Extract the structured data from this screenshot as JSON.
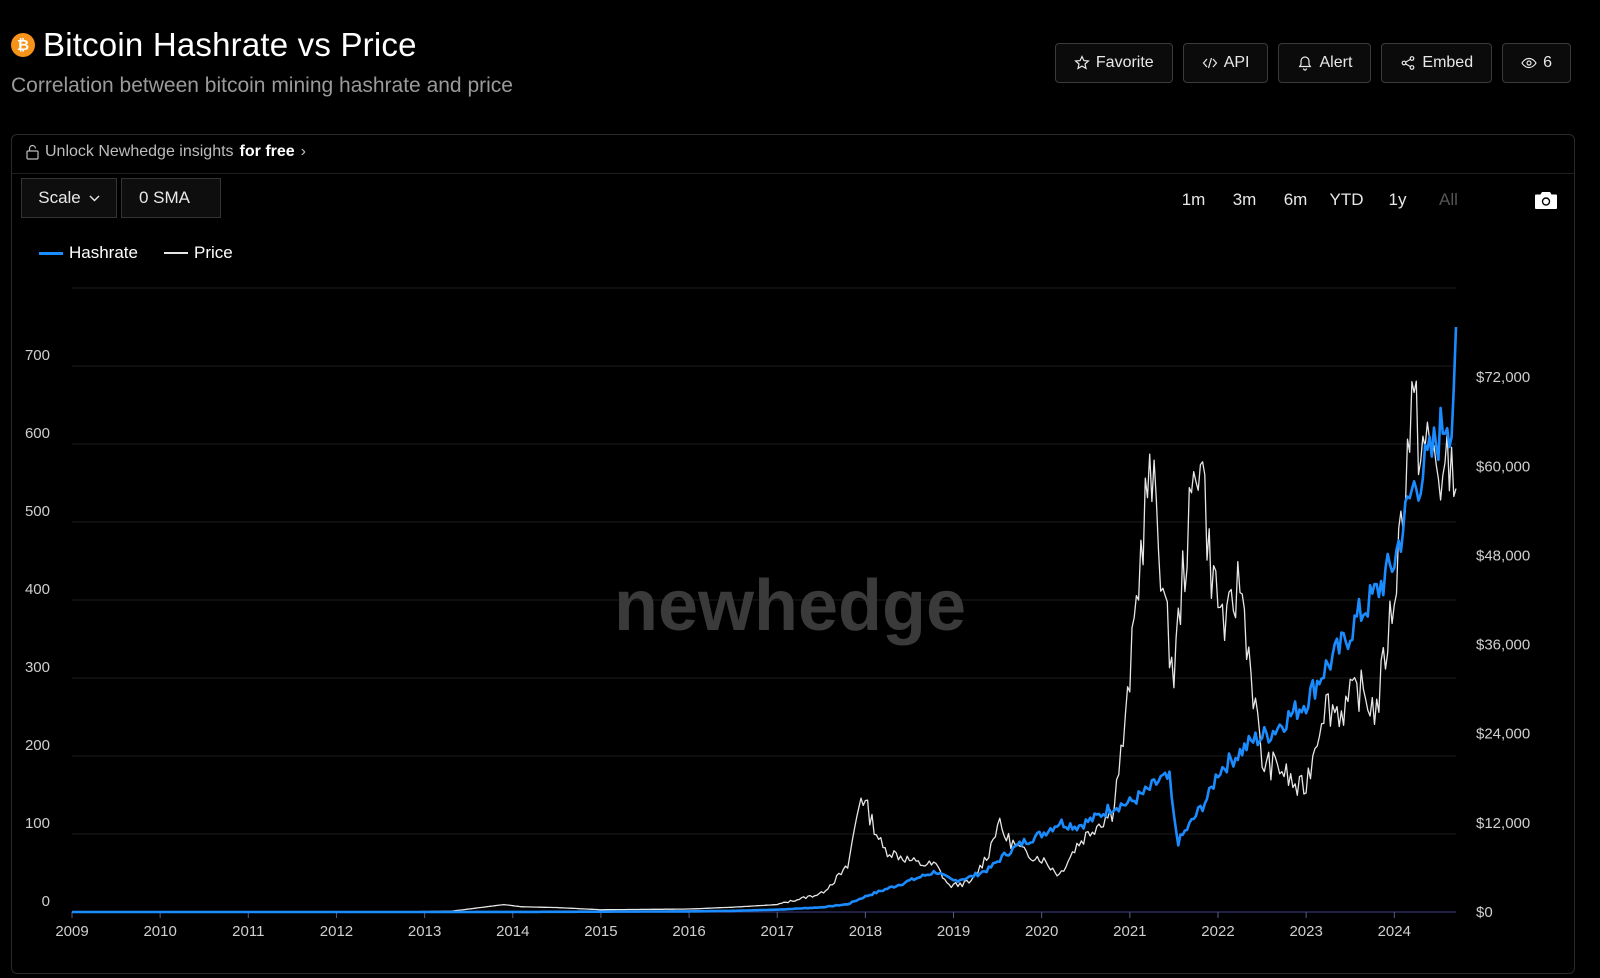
{
  "header": {
    "title": "Bitcoin Hashrate vs Price",
    "subtitle": "Correlation between bitcoin mining hashrate and price",
    "icon": "bitcoin-icon"
  },
  "actions": [
    {
      "label": "Favorite",
      "icon": "star-icon"
    },
    {
      "label": "API",
      "icon": "code-icon"
    },
    {
      "label": "Alert",
      "icon": "bell-icon"
    },
    {
      "label": "Embed",
      "icon": "share-icon"
    },
    {
      "label": "6",
      "icon": "eye-icon"
    }
  ],
  "panel": {
    "unlock_text": "Unlock Newhedge insights",
    "unlock_bold": "for free",
    "scale_label": "Scale",
    "sma_label": "0 SMA",
    "ranges": [
      "1m",
      "3m",
      "6m",
      "YTD",
      "1y",
      "All"
    ],
    "active_range": "All",
    "watermark": "newhedge"
  },
  "colors": {
    "hashrate": "#1a8cff",
    "price": "#e6e6e6",
    "background": "#000000",
    "grid": "#1c1c1c"
  },
  "chart_data": {
    "type": "line",
    "title": "",
    "xlabel": "",
    "ylabel": "",
    "x_ticks": [
      "2009",
      "2010",
      "2011",
      "2012",
      "2013",
      "2014",
      "2015",
      "2016",
      "2017",
      "2018",
      "2019",
      "2020",
      "2021",
      "2022",
      "2023",
      "2024"
    ],
    "y_left_ticks": [
      "0",
      "100",
      "200",
      "300",
      "400",
      "500",
      "600",
      "700"
    ],
    "y_right_ticks": [
      "$0",
      "$12,000",
      "$24,000",
      "$36,000",
      "$48,000",
      "$60,000",
      "$72,000"
    ],
    "ylim_left": [
      0,
      800
    ],
    "ylim_right": [
      0,
      84000
    ],
    "xlim": [
      2009.0,
      2024.7
    ],
    "grid": true,
    "legend": "top-left",
    "series": [
      {
        "name": "Hashrate",
        "axis": "left",
        "points": [
          [
            2009.0,
            0
          ],
          [
            2010.0,
            0
          ],
          [
            2011.0,
            0
          ],
          [
            2012.0,
            0.01
          ],
          [
            2013.0,
            0.02
          ],
          [
            2014.0,
            0.1
          ],
          [
            2015.0,
            0.4
          ],
          [
            2016.0,
            0.8
          ],
          [
            2016.5,
            1.5
          ],
          [
            2017.0,
            3
          ],
          [
            2017.5,
            6
          ],
          [
            2017.8,
            10
          ],
          [
            2018.0,
            20
          ],
          [
            2018.2,
            28
          ],
          [
            2018.5,
            40
          ],
          [
            2018.8,
            52
          ],
          [
            2018.9,
            45
          ],
          [
            2019.0,
            40
          ],
          [
            2019.2,
            45
          ],
          [
            2019.4,
            55
          ],
          [
            2019.6,
            75
          ],
          [
            2019.8,
            90
          ],
          [
            2020.0,
            100
          ],
          [
            2020.2,
            115
          ],
          [
            2020.4,
            110
          ],
          [
            2020.6,
            120
          ],
          [
            2020.8,
            135
          ],
          [
            2021.0,
            140
          ],
          [
            2021.2,
            155
          ],
          [
            2021.35,
            170
          ],
          [
            2021.45,
            170
          ],
          [
            2021.5,
            120
          ],
          [
            2021.55,
            90
          ],
          [
            2021.7,
            115
          ],
          [
            2021.9,
            150
          ],
          [
            2022.0,
            180
          ],
          [
            2022.2,
            200
          ],
          [
            2022.4,
            220
          ],
          [
            2022.6,
            230
          ],
          [
            2022.8,
            250
          ],
          [
            2023.0,
            270
          ],
          [
            2023.2,
            310
          ],
          [
            2023.4,
            340
          ],
          [
            2023.6,
            380
          ],
          [
            2023.8,
            410
          ],
          [
            2024.0,
            450
          ],
          [
            2024.2,
            540
          ],
          [
            2024.4,
            580
          ],
          [
            2024.6,
            640
          ],
          [
            2024.65,
            620
          ],
          [
            2024.7,
            750
          ]
        ]
      },
      {
        "name": "Price",
        "axis": "right",
        "points": [
          [
            2009.0,
            0
          ],
          [
            2010.5,
            0
          ],
          [
            2011.5,
            10
          ],
          [
            2012.5,
            10
          ],
          [
            2013.3,
            100
          ],
          [
            2013.9,
            1000
          ],
          [
            2014.1,
            700
          ],
          [
            2014.5,
            600
          ],
          [
            2015.0,
            300
          ],
          [
            2016.0,
            400
          ],
          [
            2016.5,
            650
          ],
          [
            2017.0,
            1000
          ],
          [
            2017.5,
            2500
          ],
          [
            2017.8,
            6000
          ],
          [
            2017.95,
            16000
          ],
          [
            2018.05,
            13000
          ],
          [
            2018.2,
            8500
          ],
          [
            2018.4,
            7500
          ],
          [
            2018.6,
            6500
          ],
          [
            2018.8,
            6300
          ],
          [
            2018.95,
            3500
          ],
          [
            2019.2,
            4000
          ],
          [
            2019.4,
            8000
          ],
          [
            2019.5,
            12000
          ],
          [
            2019.6,
            10000
          ],
          [
            2019.8,
            8000
          ],
          [
            2020.0,
            7200
          ],
          [
            2020.2,
            5000
          ],
          [
            2020.4,
            9000
          ],
          [
            2020.6,
            11500
          ],
          [
            2020.8,
            13500
          ],
          [
            2020.95,
            25000
          ],
          [
            2021.1,
            45000
          ],
          [
            2021.2,
            58000
          ],
          [
            2021.3,
            55000
          ],
          [
            2021.4,
            40000
          ],
          [
            2021.5,
            32000
          ],
          [
            2021.6,
            45000
          ],
          [
            2021.8,
            64000
          ],
          [
            2021.9,
            48000
          ],
          [
            2022.0,
            42000
          ],
          [
            2022.1,
            38000
          ],
          [
            2022.25,
            45000
          ],
          [
            2022.4,
            30000
          ],
          [
            2022.5,
            20000
          ],
          [
            2022.7,
            19500
          ],
          [
            2022.9,
            16500
          ],
          [
            2023.0,
            17000
          ],
          [
            2023.2,
            28000
          ],
          [
            2023.4,
            27000
          ],
          [
            2023.6,
            30000
          ],
          [
            2023.8,
            27000
          ],
          [
            2023.9,
            35000
          ],
          [
            2024.0,
            43000
          ],
          [
            2024.2,
            68000
          ],
          [
            2024.3,
            63000
          ],
          [
            2024.45,
            61000
          ],
          [
            2024.55,
            58000
          ],
          [
            2024.65,
            60000
          ],
          [
            2024.7,
            57000
          ]
        ]
      }
    ]
  }
}
